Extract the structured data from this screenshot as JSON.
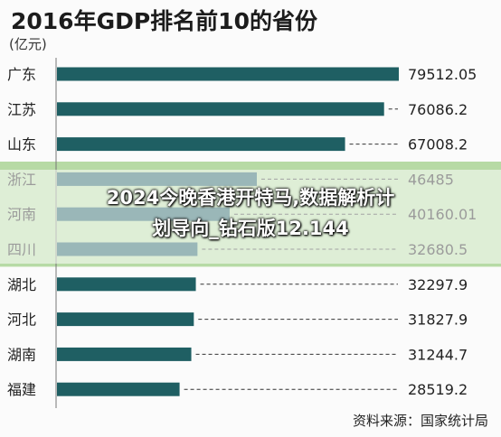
{
  "page": {
    "title": "2016年GDP排名前10的省份",
    "unit": "(亿元)",
    "source": "资料来源：国家统计局"
  },
  "banner": {
    "line1": "2024今晚香港开特马,数据解析计",
    "line2": "划导向_钻石版12.144"
  },
  "colors": {
    "bar": "#1f5f63",
    "background": "#fbfbfb",
    "highlight_band": "#7fbf5f",
    "dashed_line": "#333333"
  },
  "chart_data": {
    "type": "bar",
    "orientation": "horizontal",
    "title": "2016年GDP排名前10的省份",
    "unit": "(亿元)",
    "categories": [
      "广东",
      "江苏",
      "山东",
      "浙江",
      "河南",
      "四川",
      "湖北",
      "河北",
      "湖南",
      "福建"
    ],
    "values": [
      79512.05,
      76086.2,
      67008.2,
      46485,
      40160.01,
      32680.5,
      32297.9,
      31827.9,
      31244.7,
      28519.2
    ],
    "value_labels": [
      "79512.05",
      "76086.2",
      "67008.2",
      "46485",
      "40160.01",
      "32680.5",
      "32297.9",
      "31827.9",
      "31244.7",
      "28519.2"
    ],
    "xlim": [
      0,
      79512.05
    ],
    "highlighted_categories": [
      "浙江",
      "河南",
      "四川"
    ],
    "grid": false,
    "source": "资料来源：国家统计局"
  }
}
